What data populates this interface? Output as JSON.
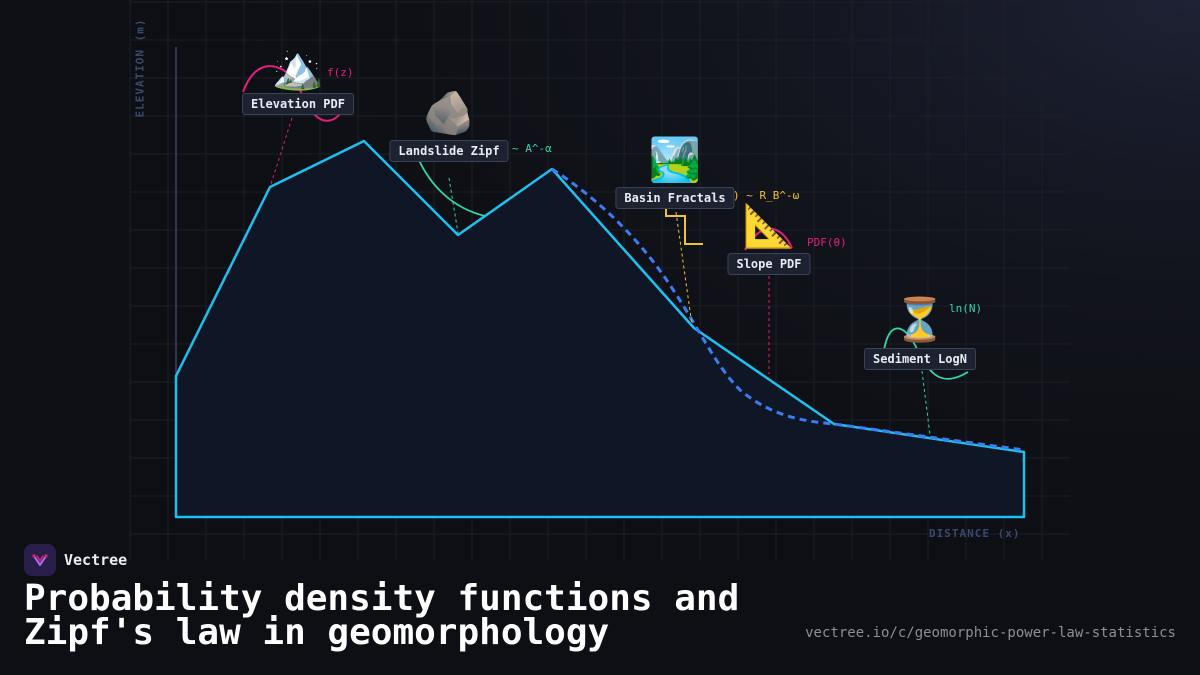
{
  "diagram": {
    "axis_y_label": "ELEVATION (m)",
    "axis_x_label": "DISTANCE (x)",
    "items": [
      {
        "key": "elevation",
        "label": "Elevation PDF",
        "icon": "🏔️",
        "icon_name": "mountain-icon",
        "formula": "f(z)",
        "color": "#e0207a"
      },
      {
        "key": "landslide",
        "label": "Landslide Zipf",
        "icon": "🪨",
        "icon_name": "rock-icon",
        "formula": "~ A^-α",
        "color": "#34d6a6"
      },
      {
        "key": "basin",
        "label": "Basin Fractals",
        "icon": "🏞️",
        "icon_name": "river-valley-icon",
        "formula": ") ~ R_B^-ω",
        "color": "#f2c230"
      },
      {
        "key": "slope",
        "label": "Slope PDF",
        "icon": "📐",
        "icon_name": "triangle-ruler-icon",
        "formula": "PDF(θ)",
        "color": "#e0207a"
      },
      {
        "key": "sediment",
        "label": "Sediment LogN",
        "icon": "⏳",
        "icon_name": "hourglass-icon",
        "formula": "ln(N)",
        "color": "#34d6a6"
      }
    ]
  },
  "colors": {
    "background": "#0e0f14",
    "terrain_stroke": "#1ec0f0",
    "terrain_fill": "#0f1626",
    "dashed_profile": "#3b7cf0",
    "grid": "#1c1f28"
  },
  "brand": {
    "name": "Vectree"
  },
  "title": {
    "line1": "Probability density functions and",
    "line2": "Zipf's law in geomorphology"
  },
  "url": "vectree.io/c/geomorphic-power-law-statistics"
}
